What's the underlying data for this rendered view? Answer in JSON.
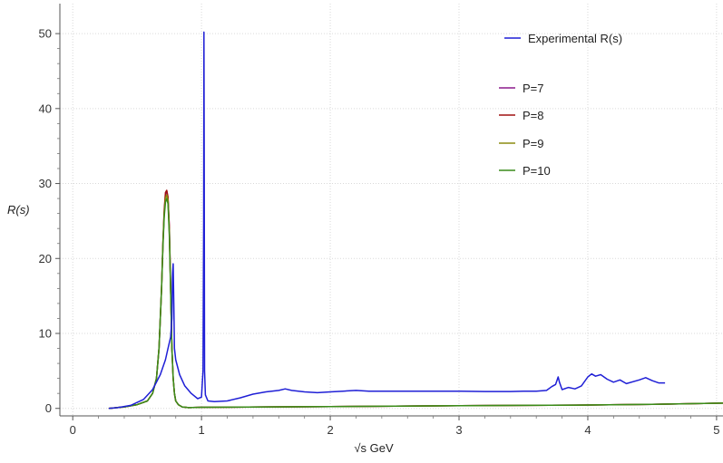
{
  "chart_data": {
    "type": "line",
    "title": "",
    "xlabel": "√s GeV",
    "ylabel": "R(s)",
    "xlim": [
      -0.1,
      5.05
    ],
    "ylim": [
      -1,
      54
    ],
    "x_ticks": [
      0,
      1,
      2,
      3,
      4,
      5
    ],
    "y_ticks": [
      0,
      10,
      20,
      30,
      40,
      50
    ],
    "x_tick_labels": [
      "0",
      "1",
      "2",
      "3",
      "4",
      "5"
    ],
    "y_tick_labels": [
      "0",
      "10",
      "20",
      "30",
      "40",
      "50"
    ],
    "grid": true,
    "legend_position": "top-right",
    "series": [
      {
        "name": "Experimental R(s)",
        "color": "#1f1fd6",
        "x": [
          0.28,
          0.35,
          0.45,
          0.55,
          0.62,
          0.68,
          0.72,
          0.74,
          0.76,
          0.77,
          0.775,
          0.78,
          0.785,
          0.79,
          0.8,
          0.83,
          0.87,
          0.92,
          0.97,
          1.0,
          1.012,
          1.017,
          1.019,
          1.021,
          1.024,
          1.03,
          1.05,
          1.1,
          1.2,
          1.3,
          1.4,
          1.5,
          1.6,
          1.65,
          1.7,
          1.8,
          1.9,
          2.0,
          2.1,
          2.2,
          2.3,
          2.4,
          2.6,
          2.8,
          3.0,
          3.2,
          3.4,
          3.5,
          3.6,
          3.68,
          3.72,
          3.75,
          3.77,
          3.78,
          3.8,
          3.85,
          3.9,
          3.95,
          4.0,
          4.03,
          4.06,
          4.1,
          4.15,
          4.2,
          4.25,
          4.3,
          4.4,
          4.45,
          4.5,
          4.55,
          4.6
        ],
        "y": [
          0.0,
          0.1,
          0.4,
          1.2,
          2.5,
          4.5,
          6.5,
          8.0,
          9.5,
          12.0,
          18.0,
          19.3,
          14.0,
          8.0,
          6.5,
          4.5,
          3.0,
          2.0,
          1.3,
          1.5,
          5.0,
          25.0,
          50.2,
          35.0,
          5.0,
          1.8,
          1.0,
          0.9,
          1.0,
          1.4,
          1.9,
          2.2,
          2.4,
          2.6,
          2.4,
          2.2,
          2.1,
          2.2,
          2.3,
          2.4,
          2.3,
          2.3,
          2.3,
          2.3,
          2.3,
          2.25,
          2.25,
          2.3,
          2.3,
          2.4,
          2.9,
          3.2,
          4.2,
          3.5,
          2.5,
          2.8,
          2.6,
          3.0,
          4.2,
          4.6,
          4.3,
          4.5,
          3.9,
          3.5,
          3.8,
          3.3,
          3.8,
          4.1,
          3.7,
          3.4,
          3.4
        ]
      },
      {
        "name": "P=7",
        "color": "#8b1a8b",
        "x": [
          0.28,
          0.4,
          0.5,
          0.58,
          0.62,
          0.65,
          0.67,
          0.69,
          0.7,
          0.71,
          0.72,
          0.73,
          0.74,
          0.75,
          0.76,
          0.77,
          0.78,
          0.79,
          0.8,
          0.82,
          0.85,
          0.9,
          1.0,
          1.5,
          2.0,
          2.5,
          3.0,
          3.5,
          4.0,
          4.5,
          5.05
        ],
        "y": [
          0.0,
          0.2,
          0.5,
          1.0,
          2.0,
          4.0,
          8.0,
          16.0,
          22.0,
          26.0,
          28.5,
          29.0,
          28.0,
          24.0,
          16.0,
          8.0,
          4.0,
          2.0,
          1.0,
          0.5,
          0.2,
          0.1,
          0.15,
          0.2,
          0.25,
          0.3,
          0.35,
          0.4,
          0.45,
          0.55,
          0.7
        ]
      },
      {
        "name": "P=8",
        "color": "#a01010",
        "x": [
          0.28,
          0.4,
          0.5,
          0.58,
          0.62,
          0.65,
          0.67,
          0.69,
          0.7,
          0.71,
          0.72,
          0.73,
          0.74,
          0.75,
          0.76,
          0.77,
          0.78,
          0.79,
          0.8,
          0.82,
          0.85,
          0.9,
          1.0,
          1.5,
          2.0,
          2.5,
          3.0,
          3.5,
          4.0,
          4.5,
          5.05
        ],
        "y": [
          0.0,
          0.2,
          0.5,
          1.0,
          2.0,
          4.0,
          8.0,
          16.0,
          22.0,
          26.5,
          28.8,
          29.1,
          28.2,
          24.0,
          16.0,
          8.0,
          4.0,
          2.0,
          1.0,
          0.5,
          0.2,
          0.1,
          0.15,
          0.2,
          0.25,
          0.3,
          0.35,
          0.4,
          0.45,
          0.55,
          0.7
        ]
      },
      {
        "name": "P=9",
        "color": "#8b8b10",
        "x": [
          0.28,
          0.4,
          0.5,
          0.58,
          0.62,
          0.65,
          0.67,
          0.69,
          0.7,
          0.71,
          0.72,
          0.73,
          0.74,
          0.75,
          0.76,
          0.77,
          0.78,
          0.79,
          0.8,
          0.82,
          0.85,
          0.9,
          1.0,
          1.5,
          2.0,
          2.5,
          3.0,
          3.5,
          4.0,
          4.5,
          5.05
        ],
        "y": [
          0.0,
          0.2,
          0.5,
          1.0,
          2.0,
          4.0,
          8.0,
          16.0,
          22.0,
          26.0,
          28.0,
          28.5,
          27.8,
          23.5,
          16.0,
          8.0,
          4.0,
          2.0,
          1.0,
          0.5,
          0.2,
          0.1,
          0.15,
          0.2,
          0.25,
          0.3,
          0.35,
          0.4,
          0.45,
          0.55,
          0.7
        ]
      },
      {
        "name": "P=10",
        "color": "#3a8c1a",
        "x": [
          0.28,
          0.4,
          0.5,
          0.58,
          0.62,
          0.65,
          0.67,
          0.69,
          0.7,
          0.71,
          0.72,
          0.73,
          0.74,
          0.75,
          0.76,
          0.77,
          0.78,
          0.79,
          0.8,
          0.82,
          0.85,
          0.9,
          1.0,
          1.5,
          2.0,
          2.5,
          3.0,
          3.5,
          4.0,
          4.5,
          5.05
        ],
        "y": [
          0.0,
          0.2,
          0.5,
          1.0,
          2.0,
          4.0,
          8.0,
          16.0,
          21.5,
          25.5,
          27.5,
          28.0,
          27.3,
          23.0,
          15.5,
          8.0,
          4.0,
          2.0,
          1.0,
          0.5,
          0.2,
          0.1,
          0.15,
          0.2,
          0.25,
          0.3,
          0.35,
          0.4,
          0.45,
          0.55,
          0.7
        ]
      }
    ]
  }
}
